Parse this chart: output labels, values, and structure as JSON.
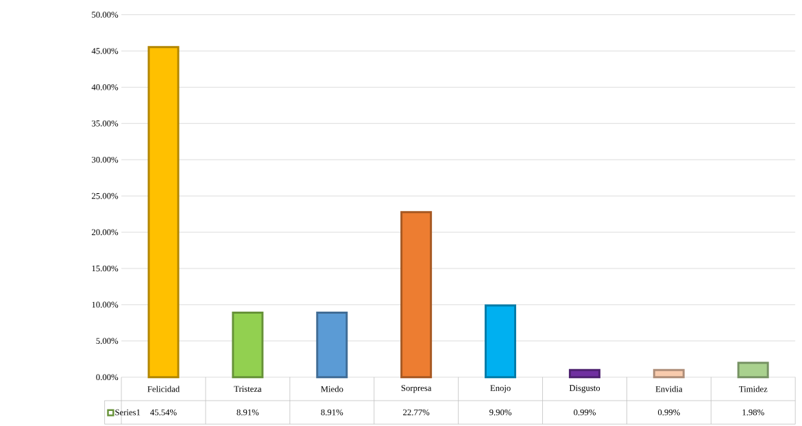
{
  "chart_data": {
    "type": "bar",
    "categories": [
      "Felicidad",
      "Tristeza",
      "Miedo",
      "Sorpresa",
      "Enojo",
      "Disgusto",
      "Envidia",
      "Timidez"
    ],
    "series": [
      {
        "name": "Series1",
        "colors": [
          "#ffc000",
          "#92d050",
          "#5b9bd5",
          "#ed7d31",
          "#00b0f0",
          "#7030a0",
          "#f8cbad",
          "#a9d18e"
        ],
        "values": [
          45.54,
          8.91,
          8.91,
          22.77,
          9.9,
          0.99,
          0.99,
          1.98
        ],
        "value_labels": [
          "45.54%",
          "8.91%",
          "8.91%",
          "22.77%",
          "9.90%",
          "0.99%",
          "0.99%",
          "1.98%"
        ]
      }
    ],
    "ylim": [
      0,
      50
    ],
    "yticks": [
      {
        "value": 0,
        "label": "0.00%"
      },
      {
        "value": 5,
        "label": "5.00%"
      },
      {
        "value": 10,
        "label": "10.00%"
      },
      {
        "value": 15,
        "label": "15.00%"
      },
      {
        "value": 20,
        "label": "20.00%"
      },
      {
        "value": 25,
        "label": "25.00%"
      },
      {
        "value": 30,
        "label": "30.00%"
      },
      {
        "value": 35,
        "label": "35.00%"
      },
      {
        "value": 40,
        "label": "40.00%"
      },
      {
        "value": 45,
        "label": "45.00%"
      },
      {
        "value": 50,
        "label": "50.00%"
      }
    ],
    "grid": "y"
  }
}
